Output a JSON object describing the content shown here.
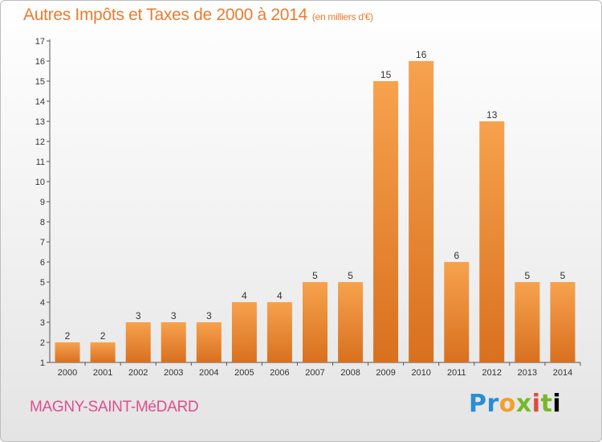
{
  "header": {
    "title": "Autres Impôts et Taxes de 2000 à 2014",
    "unit": "(en milliers d'€)"
  },
  "footer": {
    "commune": "MAGNY-SAINT-MéDARD",
    "brand_letters": [
      "P",
      "r",
      "o",
      "x",
      "i",
      "t",
      "i"
    ]
  },
  "colors": {
    "bar_fill_top": "#f7a24e",
    "bar_fill_bottom": "#d8701f",
    "title": "#ea7c2f",
    "commune": "#e04e8a"
  },
  "chart_data": {
    "type": "bar",
    "categories": [
      "2000",
      "2001",
      "2002",
      "2003",
      "2004",
      "2005",
      "2006",
      "2007",
      "2008",
      "2009",
      "2010",
      "2011",
      "2012",
      "2013",
      "2014"
    ],
    "values": [
      2,
      2,
      3,
      3,
      3,
      4,
      4,
      5,
      5,
      15,
      16,
      6,
      13,
      5,
      5
    ],
    "ylim": [
      1,
      17
    ],
    "yticks": [
      1,
      2,
      3,
      4,
      5,
      6,
      7,
      8,
      9,
      10,
      11,
      12,
      13,
      14,
      15,
      16,
      17
    ],
    "grid": false,
    "legend": "none",
    "data_labels": true
  }
}
